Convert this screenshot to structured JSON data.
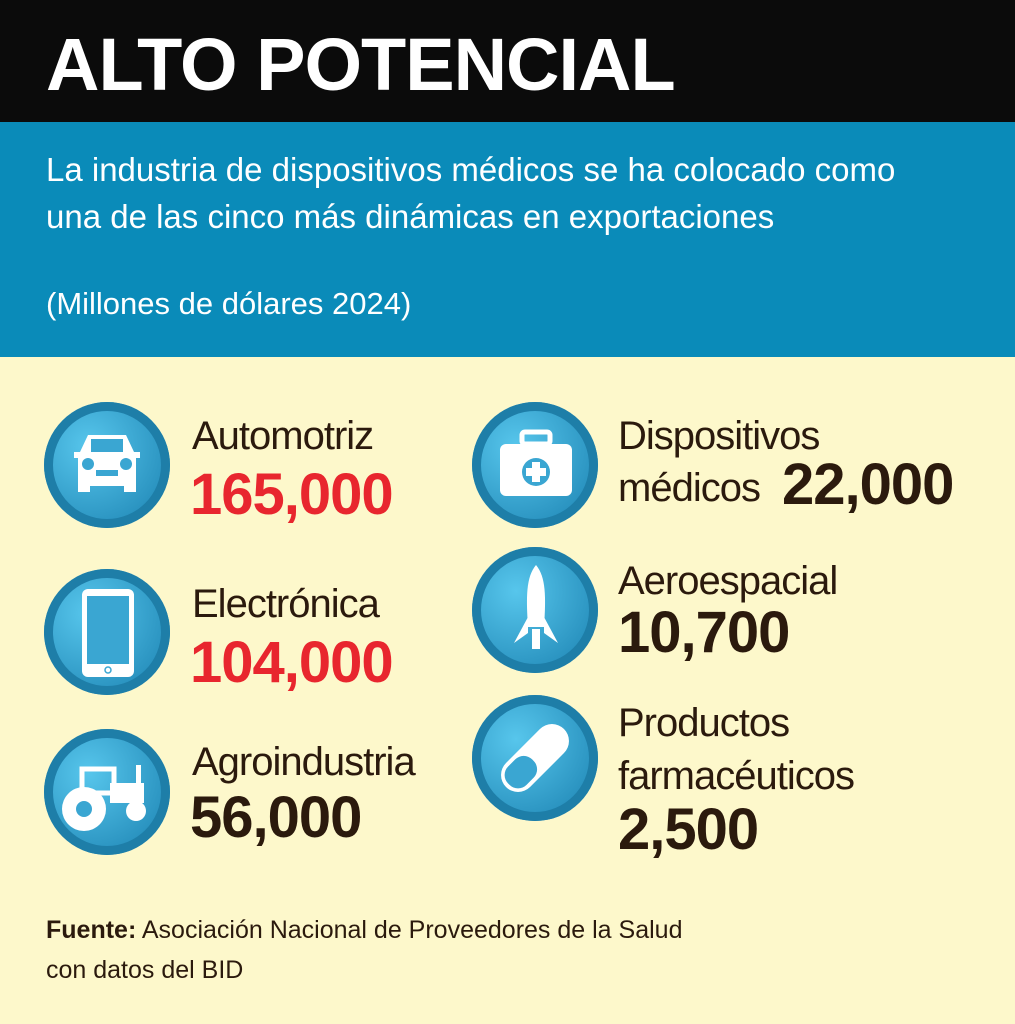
{
  "header": {
    "title": "ALTO POTENCIAL",
    "subtitle": "La industria de dispositivos médicos se ha colocado como una de las cinco más dinámicas en exportaciones",
    "unit": "(Millones de dólares 2024)"
  },
  "colors": {
    "black_band": "#0b0b0b",
    "blue_band": "#0a8bb9",
    "background": "#fdf8cb",
    "highlight": "#e8262e",
    "text": "#2b1a0d"
  },
  "items": [
    {
      "label": "Automotriz",
      "value": "165,000",
      "icon": "car-icon",
      "highlight": true
    },
    {
      "label": "Electrónica",
      "value": "104,000",
      "icon": "tablet-icon",
      "highlight": true
    },
    {
      "label": "Agroindustria",
      "value": "56,000",
      "icon": "tractor-icon",
      "highlight": false
    },
    {
      "label": "Dispositivos",
      "label2": "médicos",
      "value": "22,000",
      "icon": "medical-kit-icon",
      "highlight": false
    },
    {
      "label": "Aeroespacial",
      "value": "10,700",
      "icon": "rocket-icon",
      "highlight": false
    },
    {
      "label": "Productos",
      "label2": "farmacéuticos",
      "value": "2,500",
      "icon": "pill-icon",
      "highlight": false
    }
  ],
  "source": {
    "label": "Fuente:",
    "text": "Asociación Nacional de Proveedores de la Salud con datos del BID"
  }
}
